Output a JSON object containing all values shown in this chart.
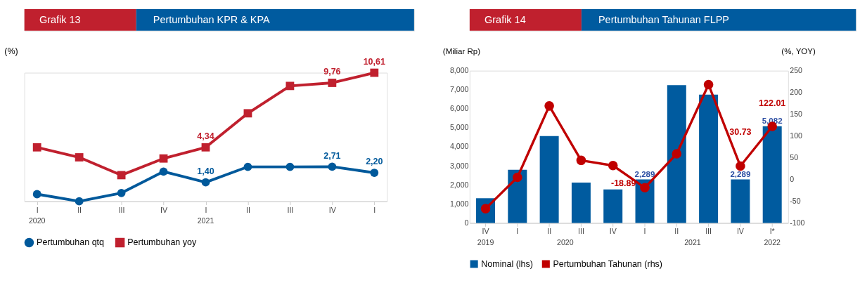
{
  "chart_data": [
    {
      "type": "line",
      "title": "Pertumbuhan KPR & KPA",
      "subtitle": "Grafik 13",
      "ylabel": "(%)",
      "categories": [
        "I",
        "II",
        "III",
        "IV",
        "I",
        "II",
        "III",
        "IV",
        "I"
      ],
      "annotations": [
        "2020",
        "2021"
      ],
      "series": [
        {
          "name": "Pertumbuhan qtq",
          "color": "#00599b",
          "marker": "circle",
          "values": [
            0.4,
            -0.2,
            0.5,
            2.3,
            1.4,
            2.7,
            2.7,
            2.71,
            2.2
          ],
          "value_labels": [
            null,
            null,
            null,
            null,
            "1,40",
            null,
            null,
            "2,71",
            "2,20"
          ]
        },
        {
          "name": "Pertumbuhan yoy",
          "color": "#c0202e",
          "marker": "square",
          "values": [
            4.34,
            3.5,
            2.0,
            3.4,
            4.34,
            7.2,
            9.5,
            9.76,
            10.61
          ],
          "value_labels": [
            null,
            null,
            null,
            null,
            "4,34",
            null,
            null,
            "9,76",
            "10,61"
          ]
        }
      ],
      "legend": "bottom",
      "grid": false,
      "tick_labels": "x"
    },
    {
      "type": "bar",
      "title": "Pertumbuhan Tahunan FLPP",
      "subtitle": "Grafik 14",
      "ylabel": "(Miliar Rp)",
      "y2label": "(%, YOY)",
      "categories": [
        "IV",
        "I",
        "II",
        "III",
        "IV",
        "I",
        "II",
        "III",
        "IV",
        "I*"
      ],
      "annotations": [
        "2019",
        "2020",
        "2021",
        "2022"
      ],
      "series": [
        {
          "name": "Nominal (lhs)",
          "type": "bar",
          "color": "#005b9f",
          "values": [
            1300,
            2800,
            4570,
            2120,
            1760,
            2289,
            7240,
            6740,
            2289,
            5082
          ],
          "value_labels": [
            null,
            null,
            null,
            null,
            null,
            "2,289",
            null,
            null,
            "2,289",
            "5,082"
          ]
        },
        {
          "name": "Pertumbuhan Tahunan (rhs)",
          "type": "line",
          "axis": "y2",
          "color": "#c00000",
          "marker": "circle",
          "values": [
            -67,
            5,
            169,
            44,
            32,
            -18.89,
            59,
            218,
            30.73,
            122.01
          ],
          "value_labels": [
            null,
            null,
            null,
            null,
            null,
            "-18.89",
            null,
            null,
            "30.73",
            "122.01"
          ]
        }
      ],
      "ylim": [
        0,
        8000
      ],
      "yticks": [
        0,
        {
          "value": 1000,
          "label": "1,000"
        },
        {
          "value": 2000,
          "label": "2,000"
        },
        {
          "value": 3000,
          "label": "3,000"
        },
        {
          "value": 4000,
          "label": "4,000"
        },
        {
          "value": 5000,
          "label": "5,000"
        },
        {
          "value": 6000,
          "label": "6,000"
        },
        {
          "value": 7000,
          "label": "7,000"
        },
        {
          "value": 8000,
          "label": "8,000"
        }
      ],
      "y2lim": [
        -100,
        250
      ],
      "y2ticks": [
        -100,
        -50,
        0,
        50,
        100,
        150,
        200,
        250
      ],
      "legend": "bottom",
      "grid": false
    }
  ]
}
